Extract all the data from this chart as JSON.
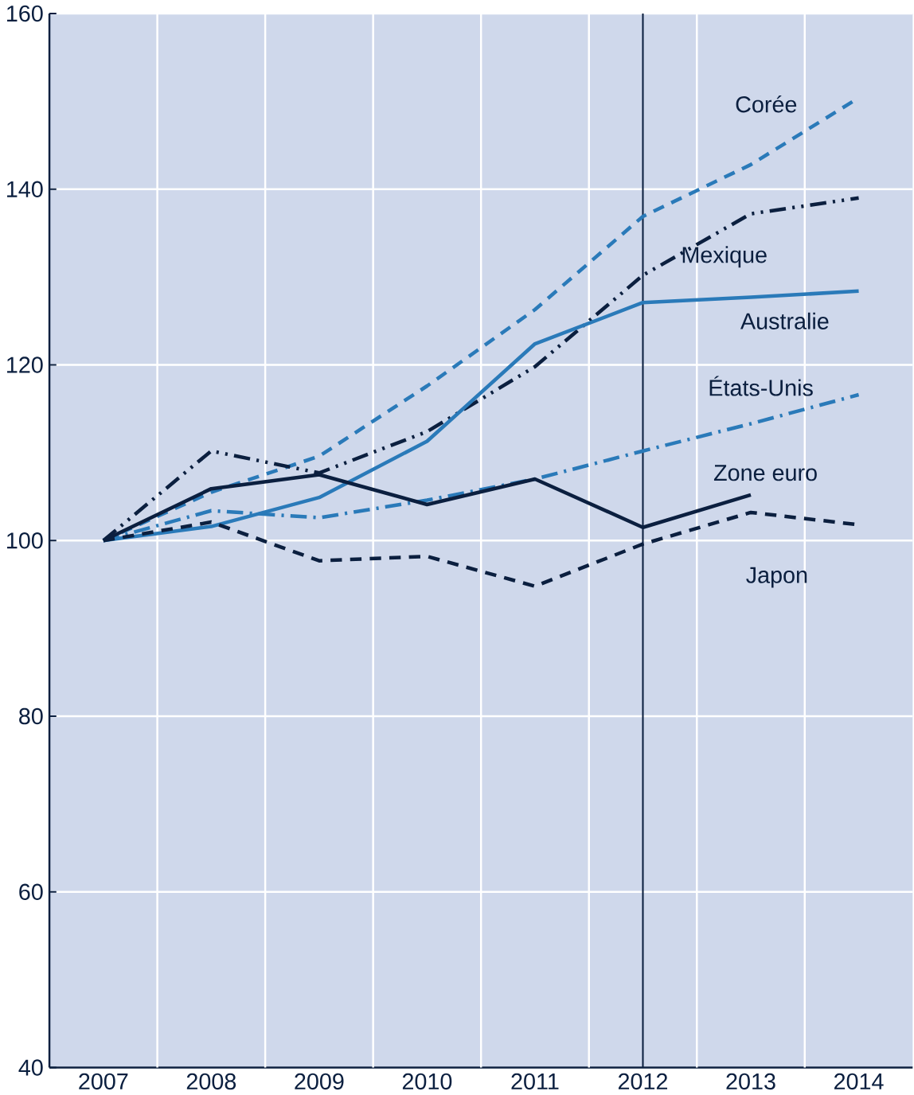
{
  "chart_data": {
    "type": "line",
    "x": [
      2007,
      2008,
      2009,
      2010,
      2011,
      2012,
      2013,
      2014
    ],
    "xlim": [
      2006.5,
      2014.5
    ],
    "xticks": [
      2007,
      2008,
      2009,
      2010,
      2011,
      2012,
      2013,
      2014,
      {
        "value": 2007.5,
        "label": null
      },
      {
        "value": 2008.5,
        "label": null
      },
      {
        "value": 2009.5,
        "label": null
      },
      {
        "value": 2010.5,
        "label": null
      },
      {
        "value": 2011.5,
        "label": null
      },
      {
        "value": 2012.5,
        "label": null
      },
      {
        "value": 2013.5,
        "label": null
      }
    ],
    "ylim": [
      40,
      160
    ],
    "yticks": [
      40,
      60,
      80,
      100,
      120,
      140,
      160
    ],
    "grid": true,
    "series": [
      {
        "name": "Corée",
        "color": "#2a7ab9",
        "line_style": "dashed",
        "values": [
          100,
          105.5,
          109.6,
          117.6,
          126.3,
          136.9,
          142.8,
          150.4
        ]
      },
      {
        "name": "Mexique",
        "color": "#0b1f3f",
        "line_style": "dashdotdot",
        "values": [
          100,
          110.2,
          107.7,
          112.4,
          119.8,
          130.2,
          137.2,
          139.0
        ]
      },
      {
        "name": "Australie",
        "color": "#2a7ab9",
        "line_style": "solid",
        "values": [
          100,
          101.6,
          104.9,
          111.3,
          122.4,
          127.1,
          127.7,
          128.4
        ]
      },
      {
        "name": "États-Unis",
        "color": "#2a7ab9",
        "line_style": "dashdot",
        "values": [
          100,
          103.4,
          102.6,
          104.6,
          107.0,
          110.2,
          113.3,
          116.6
        ]
      },
      {
        "name": "Zone euro",
        "color": "#0b1f3f",
        "line_style": "solid",
        "values": [
          100,
          105.9,
          107.5,
          104.1,
          107.0,
          101.5,
          105.2,
          null
        ]
      },
      {
        "name": "Japon",
        "color": "#0b1f3f",
        "line_style": "dashed",
        "values": [
          100,
          102.1,
          97.7,
          98.2,
          94.8,
          99.6,
          103.2,
          101.8
        ]
      }
    ],
    "ref_lines": [
      {
        "axis": "x",
        "value": 2012,
        "color": "#0b1f3f"
      }
    ]
  }
}
